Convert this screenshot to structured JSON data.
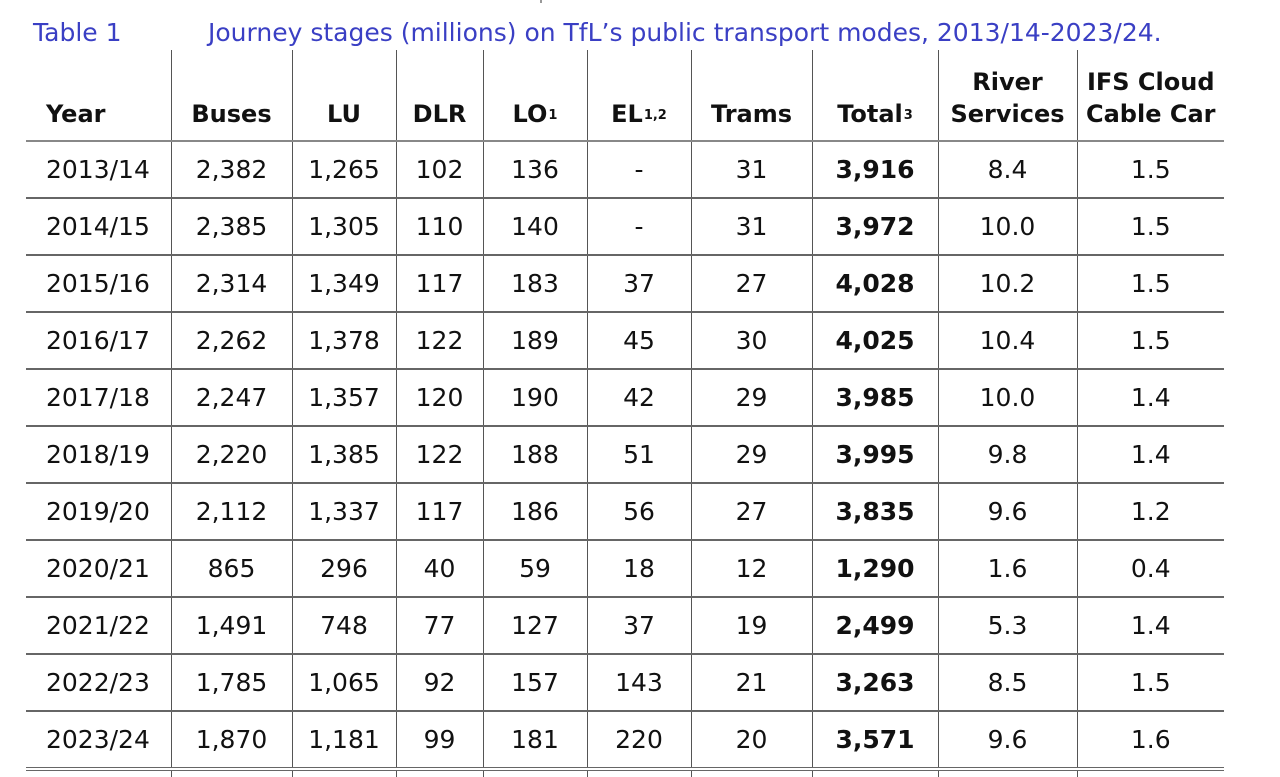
{
  "caption": {
    "label": "Table 1",
    "title": "Journey stages (millions) on TfL’s public transport modes, 2013/14-2023/24."
  },
  "columns": [
    {
      "line1": "",
      "line2": "Year",
      "sup": ""
    },
    {
      "line1": "",
      "line2": "Buses",
      "sup": ""
    },
    {
      "line1": "",
      "line2": "LU",
      "sup": ""
    },
    {
      "line1": "",
      "line2": "DLR",
      "sup": ""
    },
    {
      "line1": "",
      "line2": "LO",
      "sup": "1"
    },
    {
      "line1": "",
      "line2": "EL",
      "sup": "1,2"
    },
    {
      "line1": "",
      "line2": "Trams",
      "sup": ""
    },
    {
      "line1": "",
      "line2": "Total",
      "sup": "3"
    },
    {
      "line1": "River",
      "line2": "Services",
      "sup": ""
    },
    {
      "line1": "IFS Cloud",
      "line2": "Cable Car",
      "sup": ""
    }
  ],
  "rows": [
    [
      "2013/14",
      "2,382",
      "1,265",
      "102",
      "136",
      "-",
      "31",
      "3,916",
      "8.4",
      "1.5"
    ],
    [
      "2014/15",
      "2,385",
      "1,305",
      "110",
      "140",
      "-",
      "31",
      "3,972",
      "10.0",
      "1.5"
    ],
    [
      "2015/16",
      "2,314",
      "1,349",
      "117",
      "183",
      "37",
      "27",
      "4,028",
      "10.2",
      "1.5"
    ],
    [
      "2016/17",
      "2,262",
      "1,378",
      "122",
      "189",
      "45",
      "30",
      "4,025",
      "10.4",
      "1.5"
    ],
    [
      "2017/18",
      "2,247",
      "1,357",
      "120",
      "190",
      "42",
      "29",
      "3,985",
      "10.0",
      "1.4"
    ],
    [
      "2018/19",
      "2,220",
      "1,385",
      "122",
      "188",
      "51",
      "29",
      "3,995",
      "9.8",
      "1.4"
    ],
    [
      "2019/20",
      "2,112",
      "1,337",
      "117",
      "186",
      "56",
      "27",
      "3,835",
      "9.6",
      "1.2"
    ],
    [
      "2020/21",
      "865",
      "296",
      "40",
      "59",
      "18",
      "12",
      "1,290",
      "1.6",
      "0.4"
    ],
    [
      "2021/22",
      "1,491",
      "748",
      "77",
      "127",
      "37",
      "19",
      "2,499",
      "5.3",
      "1.4"
    ],
    [
      "2022/23",
      "1,785",
      "1,065",
      "92",
      "157",
      "143",
      "21",
      "3,263",
      "8.5",
      "1.5"
    ],
    [
      "2023/24",
      "1,870",
      "1,181",
      "99",
      "181",
      "220",
      "20",
      "3,571",
      "9.6",
      "1.6"
    ]
  ]
}
